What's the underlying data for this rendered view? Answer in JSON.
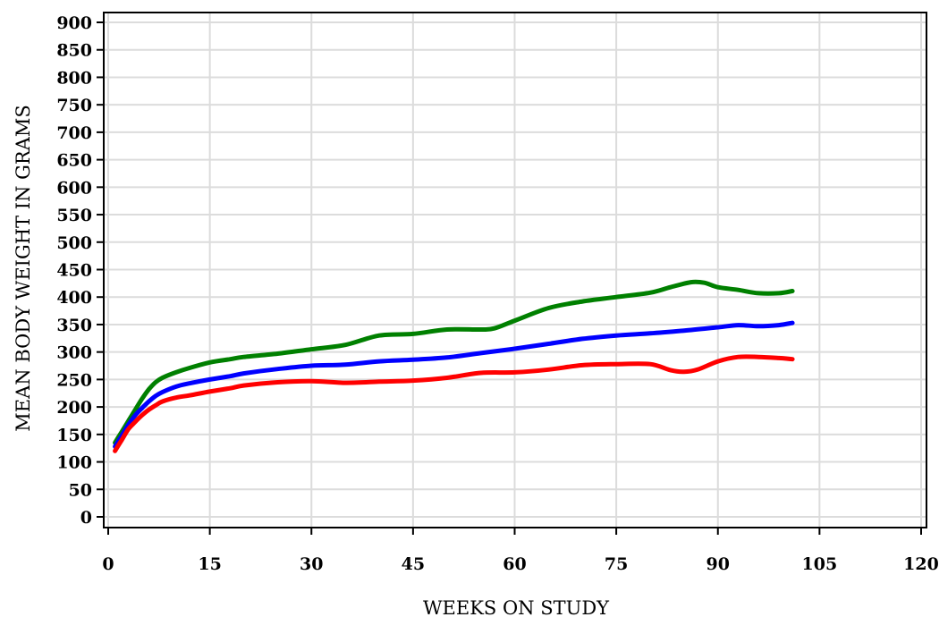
{
  "chart_data": {
    "type": "line",
    "title": "",
    "xlabel": "WEEKS ON STUDY",
    "ylabel": "MEAN BODY WEIGHT IN GRAMS",
    "xlim": [
      0,
      120
    ],
    "ylim": [
      0,
      900
    ],
    "xticks": [
      0,
      15,
      30,
      45,
      60,
      75,
      90,
      105,
      120
    ],
    "yticks": [
      0,
      50,
      100,
      150,
      200,
      250,
      300,
      350,
      400,
      450,
      500,
      550,
      600,
      650,
      700,
      750,
      800,
      850,
      900
    ],
    "grid": true,
    "legend": "none",
    "series": [
      {
        "color": "#008000",
        "x": [
          1,
          2,
          3,
          4,
          5,
          6,
          7,
          8,
          10,
          12,
          15,
          18,
          20,
          25,
          30,
          35,
          40,
          45,
          50,
          55,
          57,
          60,
          65,
          70,
          75,
          80,
          83,
          86,
          88,
          90,
          93,
          96,
          99,
          101
        ],
        "y": [
          135,
          155,
          175,
          195,
          215,
          232,
          245,
          253,
          263,
          271,
          281,
          287,
          291,
          297,
          305,
          313,
          330,
          333,
          341,
          341,
          343,
          357,
          380,
          392,
          400,
          408,
          418,
          427,
          426,
          418,
          413,
          407,
          407,
          411
        ]
      },
      {
        "color": "#0000ff",
        "x": [
          1,
          2,
          3,
          4,
          5,
          6,
          7,
          8,
          10,
          12,
          15,
          18,
          20,
          25,
          30,
          35,
          40,
          45,
          50,
          55,
          60,
          65,
          70,
          75,
          80,
          85,
          90,
          93,
          96,
          99,
          101
        ],
        "y": [
          128,
          148,
          168,
          185,
          198,
          210,
          220,
          227,
          237,
          243,
          250,
          256,
          261,
          269,
          275,
          277,
          283,
          286,
          290,
          298,
          306,
          315,
          324,
          330,
          334,
          339,
          345,
          349,
          347,
          349,
          353
        ]
      },
      {
        "color": "#ff0000",
        "x": [
          1,
          2,
          3,
          4,
          5,
          6,
          7,
          8,
          10,
          12,
          15,
          18,
          20,
          25,
          30,
          35,
          40,
          45,
          50,
          55,
          60,
          65,
          70,
          75,
          80,
          83,
          85,
          87,
          90,
          93,
          96,
          99,
          101
        ],
        "y": [
          120,
          140,
          160,
          173,
          185,
          195,
          203,
          210,
          217,
          221,
          228,
          234,
          239,
          245,
          247,
          244,
          246,
          248,
          253,
          262,
          263,
          268,
          276,
          278,
          278,
          267,
          264,
          268,
          283,
          291,
          291,
          289,
          287
        ]
      }
    ]
  }
}
